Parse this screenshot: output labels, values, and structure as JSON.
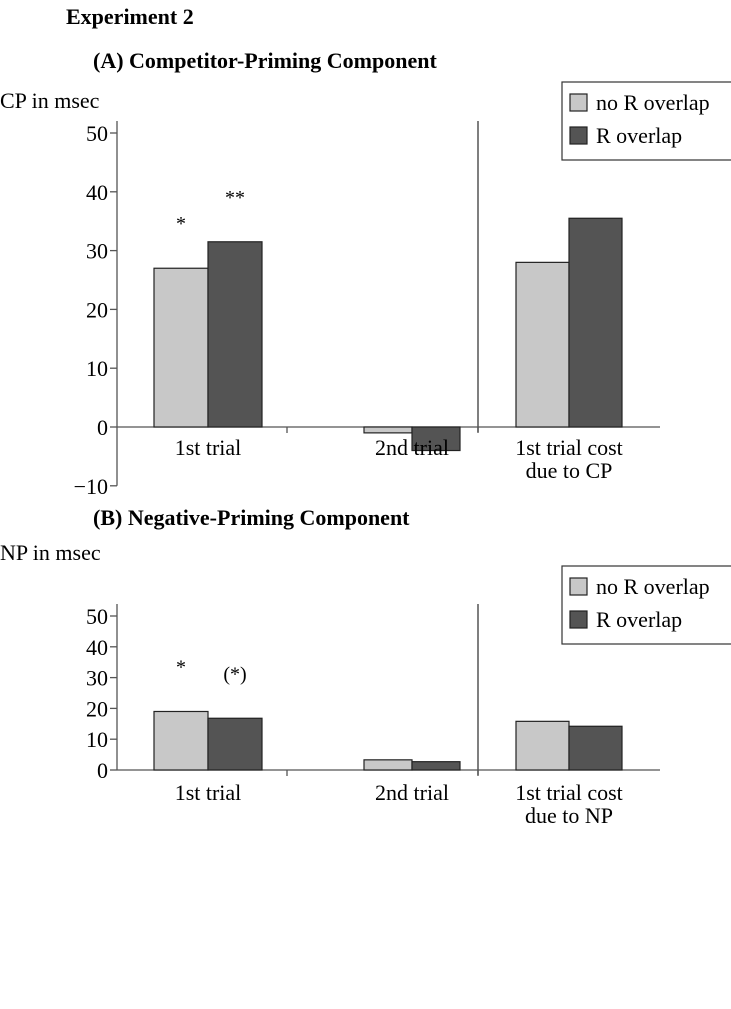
{
  "figure_title": "Experiment 2",
  "colors": {
    "no_overlap": "#c8c8c8",
    "overlap": "#545454",
    "axis": "#555555"
  },
  "chart_data": [
    {
      "type": "bar",
      "title": "(A) Competitor-Priming Component",
      "ylabel": "CP in msec",
      "ylim": [
        -10,
        50
      ],
      "yticks": [
        -10,
        0,
        10,
        20,
        30,
        40,
        50
      ],
      "categories": [
        "1st trial",
        "2nd trial",
        "1st trial cost\ndue to CP"
      ],
      "series": [
        {
          "name": "no R overlap",
          "values": [
            27,
            -1,
            28
          ]
        },
        {
          "name": "R overlap",
          "values": [
            31.5,
            -4,
            35.5
          ]
        }
      ],
      "annotations": [
        {
          "category": 0,
          "series": 0,
          "text": "*"
        },
        {
          "category": 0,
          "series": 1,
          "text": "**"
        }
      ],
      "divider_after_category": 1,
      "legend": "top-right"
    },
    {
      "type": "bar",
      "title": "(B) Negative-Priming Component",
      "ylabel": "NP in msec",
      "ylim": [
        0,
        50
      ],
      "yticks": [
        0,
        10,
        20,
        30,
        40,
        50
      ],
      "categories": [
        "1st trial",
        "2nd trial",
        "1st trial cost\ndue to NP"
      ],
      "series": [
        {
          "name": "no R overlap",
          "values": [
            19,
            3.3,
            15.8
          ]
        },
        {
          "name": "R overlap",
          "values": [
            16.8,
            2.7,
            14.2
          ]
        }
      ],
      "annotations": [
        {
          "category": 0,
          "series": 0,
          "text": "*"
        },
        {
          "category": 0,
          "series": 1,
          "text": "(*)"
        }
      ],
      "divider_after_category": 1,
      "legend": "top-right"
    }
  ]
}
